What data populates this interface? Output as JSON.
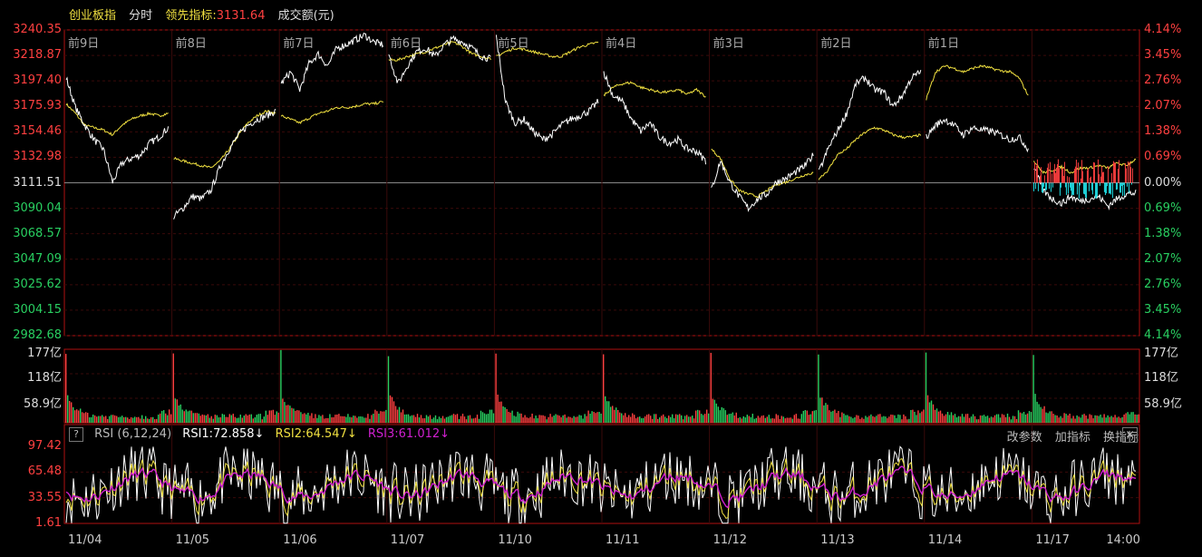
{
  "header": {
    "index_name": "创业板指",
    "mode": "分时",
    "indicator_label": "领先指标:",
    "indicator_value": "3131.64",
    "volume_label": "成交额(元)"
  },
  "colors": {
    "up": "#ff4040",
    "down": "#29d061",
    "price_line": "#ffffff",
    "leading_line": "#f0e040",
    "rsi1": "#ffffff",
    "rsi2": "#f0e040",
    "rsi3": "#d020d0",
    "grid": "#3a0a0a",
    "divider": "#b01010",
    "cyan": "#22e0e8"
  },
  "chart_data": [
    {
      "type": "line",
      "name": "price",
      "y_ticks_left": [
        "3240.35",
        "3218.87",
        "3197.40",
        "3175.93",
        "3154.46",
        "3132.98",
        "3111.51",
        "3090.04",
        "3068.57",
        "3047.09",
        "3025.62",
        "3004.15",
        "2982.68"
      ],
      "y_ticks_right": [
        "4.14%",
        "3.45%",
        "2.76%",
        "2.07%",
        "1.38%",
        "0.69%",
        "0.00%",
        "0.69%",
        "1.38%",
        "2.07%",
        "2.76%",
        "3.45%",
        "4.14%"
      ],
      "ylim": [
        2982.68,
        3240.35
      ],
      "base": 3111.51,
      "day_labels": [
        "前9日",
        "前8日",
        "前7日",
        "前6日",
        "前5日",
        "前4日",
        "前3日",
        "前2日",
        "前1日"
      ],
      "days": [
        {
          "price": [
            3200,
            3175,
            3160,
            3148,
            3140,
            3112,
            3128,
            3132,
            3135,
            3145,
            3150,
            3158
          ],
          "leading": [
            3178,
            3170,
            3160,
            3158,
            3156,
            3152,
            3160,
            3165,
            3168,
            3170,
            3168,
            3170
          ]
        },
        {
          "price": [
            3083,
            3090,
            3100,
            3098,
            3105,
            3125,
            3140,
            3152,
            3160,
            3165,
            3168,
            3172
          ],
          "leading": [
            3132,
            3130,
            3128,
            3126,
            3124,
            3130,
            3140,
            3152,
            3162,
            3168,
            3172,
            3170
          ]
        },
        {
          "price": [
            3195,
            3205,
            3190,
            3212,
            3220,
            3210,
            3225,
            3228,
            3232,
            3236,
            3230,
            3228
          ],
          "leading": [
            3168,
            3165,
            3162,
            3166,
            3170,
            3172,
            3175,
            3175,
            3176,
            3178,
            3178,
            3180
          ]
        },
        {
          "price": [
            3220,
            3195,
            3210,
            3222,
            3225,
            3218,
            3228,
            3233,
            3230,
            3225,
            3218,
            3216
          ],
          "leading": [
            3215,
            3215,
            3218,
            3220,
            3222,
            3225,
            3228,
            3230,
            3226,
            3220,
            3218,
            3216
          ]
        },
        {
          "price": [
            3235,
            3180,
            3162,
            3165,
            3155,
            3148,
            3152,
            3160,
            3165,
            3168,
            3172,
            3180
          ],
          "leading": [
            3218,
            3222,
            3225,
            3224,
            3222,
            3220,
            3218,
            3218,
            3222,
            3226,
            3228,
            3230
          ]
        },
        {
          "price": [
            3205,
            3185,
            3180,
            3165,
            3155,
            3162,
            3150,
            3145,
            3148,
            3140,
            3138,
            3130
          ],
          "leading": [
            3185,
            3192,
            3195,
            3196,
            3192,
            3190,
            3188,
            3188,
            3190,
            3186,
            3190,
            3184
          ]
        },
        {
          "price": [
            3105,
            3130,
            3112,
            3100,
            3090,
            3098,
            3102,
            3112,
            3115,
            3120,
            3125,
            3135
          ],
          "leading": [
            3140,
            3132,
            3115,
            3105,
            3102,
            3100,
            3105,
            3110,
            3112,
            3115,
            3118,
            3120
          ]
        },
        {
          "price": [
            3120,
            3140,
            3155,
            3170,
            3195,
            3200,
            3190,
            3188,
            3176,
            3185,
            3200,
            3205
          ],
          "leading": [
            3115,
            3122,
            3135,
            3140,
            3148,
            3154,
            3158,
            3156,
            3152,
            3150,
            3150,
            3152
          ]
        },
        {
          "price": [
            3150,
            3160,
            3165,
            3160,
            3152,
            3158,
            3156,
            3155,
            3152,
            3148,
            3150,
            3140
          ],
          "leading": [
            3182,
            3205,
            3210,
            3208,
            3205,
            3208,
            3210,
            3208,
            3206,
            3205,
            3200,
            3185
          ]
        },
        {
          "price": [
            3125,
            3105,
            3098,
            3094,
            3100,
            3096,
            3098,
            3100,
            3092,
            3098,
            3102,
            3103
          ],
          "leading": [
            3130,
            3120,
            3122,
            3125,
            3120,
            3124,
            3124,
            3126,
            3124,
            3128,
            3126,
            3131.64
          ]
        }
      ]
    },
    {
      "type": "bar",
      "name": "turnover",
      "y_ticks": [
        "177亿",
        "118亿",
        "58.9亿"
      ],
      "ylim": [
        0,
        177
      ],
      "days": 10
    },
    {
      "type": "line",
      "name": "RSI",
      "title": "RSI (6,12,24)",
      "y_ticks": [
        "97.42",
        "65.48",
        "33.55",
        "1.61"
      ],
      "ylim": [
        1.61,
        97.42
      ],
      "series": [
        {
          "name": "RSI1",
          "value": "72.858"
        },
        {
          "name": "RSI2",
          "value": "64.547"
        },
        {
          "name": "RSI3",
          "value": "61.012"
        }
      ],
      "x_labels": [
        "11/04",
        "11/05",
        "11/06",
        "11/07",
        "11/10",
        "11/11",
        "11/12",
        "11/13",
        "11/14",
        "11/17",
        "14:00"
      ]
    }
  ],
  "rsi_header": {
    "help": "?",
    "title": "RSI (6,12,24)",
    "rsi1": "RSI1:72.858↓",
    "rsi2": "RSI2:64.547↓",
    "rsi3": "RSI3:61.012↓"
  },
  "toolbar": {
    "change_params": "改参数",
    "add_indicator": "加指标",
    "switch_indicator": "换指标",
    "close": "✕"
  }
}
